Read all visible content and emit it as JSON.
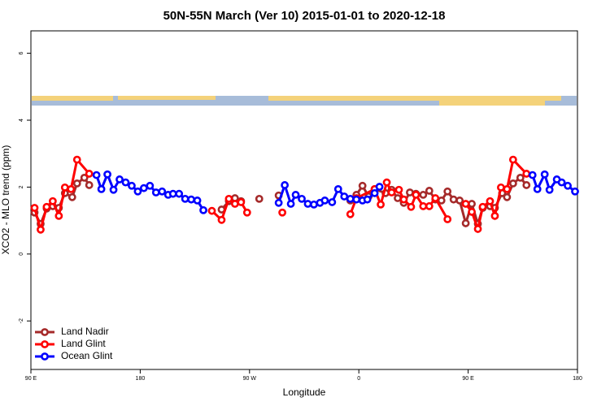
{
  "chart_data": {
    "type": "line",
    "title": "50N-55N March (Ver 10)   2015-01-01 to 2020-12-18",
    "x_label": "Longitude",
    "y_label": "XCO2 - MLO trend (ppm)",
    "xlim": [
      90,
      540
    ],
    "xticks": [
      {
        "value": 90,
        "label": "90 E"
      },
      180,
      {
        "value": 270,
        "label": "90 W"
      },
      {
        "value": 360,
        "label": "0"
      },
      {
        "value": 450,
        "label": "90 E"
      },
      {
        "value": 540,
        "label": "180"
      }
    ],
    "ylim": [
      -3.45,
      6.67
    ],
    "yticks": [
      -2,
      0,
      2,
      4,
      6
    ],
    "legend": "bottom-left",
    "series": [
      {
        "name": "Land Nadir",
        "color": "#a52a2a",
        "x": [
          93,
          98,
          103,
          108,
          113,
          118,
          124,
          128,
          134,
          138,
          null,
          247,
          253,
          258,
          263,
          null,
          278,
          null,
          294,
          null,
          353,
          358,
          363,
          368,
          373,
          382,
          387,
          392,
          397,
          402,
          407,
          413,
          418,
          423,
          428,
          433,
          438,
          443,
          448,
          453,
          458,
          462,
          468,
          472,
          478,
          482,
          487,
          493,
          498
        ],
        "values": [
          1.24,
          0.9,
          1.36,
          1.43,
          1.38,
          1.82,
          1.7,
          2.11,
          2.28,
          2.06,
          null,
          1.33,
          1.58,
          1.67,
          1.58,
          null,
          1.65,
          null,
          1.75,
          null,
          1.6,
          1.77,
          2.04,
          1.72,
          1.94,
          1.82,
          1.92,
          1.67,
          1.53,
          1.84,
          1.8,
          1.77,
          1.89,
          1.63,
          1.6,
          1.87,
          1.63,
          1.6,
          0.92,
          1.5,
          0.9,
          1.38,
          1.43,
          1.38,
          1.82,
          1.7,
          2.11,
          2.28,
          2.06
        ]
      },
      {
        "name": "Land Glint",
        "color": "#ff0000",
        "x": [
          93,
          98,
          103,
          108,
          113,
          118,
          123,
          128,
          138,
          null,
          239,
          247,
          253,
          258,
          263,
          268,
          null,
          297,
          null,
          353,
          358,
          373,
          378,
          383,
          387,
          393,
          397,
          403,
          407,
          413,
          418,
          423,
          433,
          null,
          448,
          453,
          458,
          462,
          468,
          472,
          477,
          482,
          487,
          498
        ],
        "values": [
          1.38,
          0.73,
          1.41,
          1.58,
          1.14,
          1.99,
          1.94,
          2.82,
          2.4,
          null,
          1.29,
          1.02,
          1.65,
          1.5,
          1.55,
          1.24,
          null,
          1.24,
          null,
          1.19,
          1.67,
          1.94,
          1.48,
          2.14,
          1.84,
          1.92,
          1.63,
          1.41,
          1.77,
          1.43,
          1.43,
          1.67,
          1.04,
          null,
          1.5,
          1.26,
          0.75,
          1.41,
          1.58,
          1.14,
          1.99,
          1.94,
          2.82,
          2.4
        ]
      },
      {
        "name": "Ocean Glint",
        "color": "#0000ff",
        "x": [
          144,
          148,
          153,
          158,
          163,
          168,
          173,
          178,
          183,
          188,
          193,
          198,
          203,
          207,
          212,
          217,
          222,
          227,
          232,
          null,
          294,
          299,
          304,
          308,
          313,
          318,
          323,
          328,
          332,
          338,
          343,
          348,
          353,
          358,
          363,
          367,
          373,
          377,
          null,
          503,
          507,
          513,
          517,
          523,
          527,
          532,
          538
        ],
        "values": [
          2.36,
          1.94,
          2.38,
          1.92,
          2.23,
          2.14,
          2.04,
          1.87,
          1.97,
          2.04,
          1.84,
          1.87,
          1.77,
          1.8,
          1.8,
          1.65,
          1.63,
          1.6,
          1.31,
          null,
          1.53,
          2.06,
          1.5,
          1.77,
          1.65,
          1.5,
          1.48,
          1.53,
          1.6,
          1.55,
          1.94,
          1.72,
          1.65,
          1.63,
          1.6,
          1.63,
          1.82,
          2.01,
          null,
          2.36,
          1.94,
          2.38,
          1.92,
          2.23,
          2.14,
          2.04,
          1.87
        ]
      }
    ]
  }
}
